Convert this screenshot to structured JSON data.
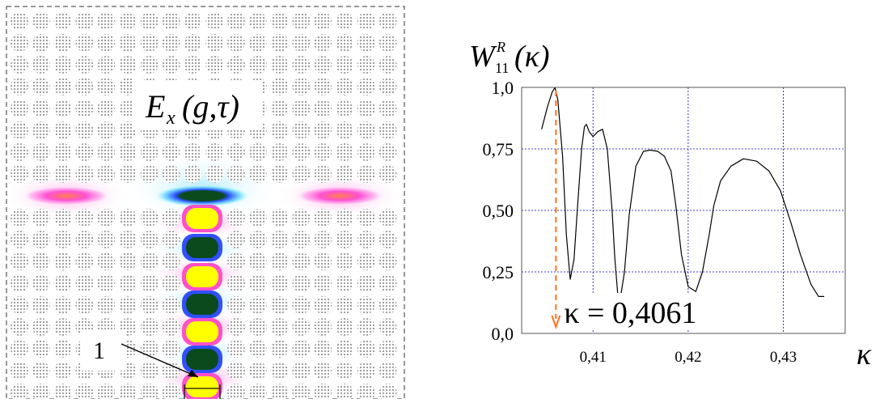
{
  "field_panel": {
    "label_E": "E",
    "label_x": "x",
    "label_args": "(g,τ)",
    "marker_label": "1",
    "colors": {
      "rod": "#9a9a9a",
      "yellow": "#ffff00",
      "dark_green": "#0b4a1d",
      "magenta": "#ff40c0",
      "blue": "#3050ff",
      "cyan": "#50d0ff",
      "orange": "#ff8050"
    }
  },
  "chart_data": {
    "type": "line",
    "title": "W₁₁ᴿ(κ)",
    "title_parts": {
      "base": "W",
      "sub": "11",
      "sup": "R",
      "arg": "(κ)"
    },
    "xlabel": "κ",
    "ylabel": "",
    "xlim": [
      0.4025,
      0.4365
    ],
    "ylim": [
      0,
      1.0
    ],
    "xticks": [
      0.41,
      0.42,
      0.43
    ],
    "xtick_labels": [
      "0,41",
      "0,42",
      "0,43"
    ],
    "yticks": [
      0.0,
      0.25,
      0.5,
      0.75,
      1.0
    ],
    "ytick_labels": [
      "0,0",
      "0,25",
      "0,50",
      "0,75",
      "1,0"
    ],
    "grid": true,
    "series": [
      {
        "x": [
          0.4046,
          0.4052,
          0.4057,
          0.406,
          0.4063,
          0.4068,
          0.4072,
          0.4076,
          0.408,
          0.4084,
          0.4088,
          0.4091,
          0.4093,
          0.4096,
          0.41,
          0.4105,
          0.411,
          0.4115,
          0.412,
          0.4123,
          0.4126,
          0.4129,
          0.4133,
          0.4138,
          0.4145,
          0.4153,
          0.416,
          0.4168,
          0.4175,
          0.4182,
          0.4187,
          0.4193,
          0.42,
          0.4208,
          0.4215,
          0.4222,
          0.4227,
          0.4234,
          0.4245,
          0.4258,
          0.4272,
          0.4285,
          0.4297,
          0.4308,
          0.4318,
          0.4329,
          0.4337,
          0.4343
        ],
        "y": [
          0.83,
          0.92,
          0.98,
          1.0,
          0.95,
          0.72,
          0.4,
          0.22,
          0.3,
          0.53,
          0.75,
          0.84,
          0.85,
          0.82,
          0.8,
          0.82,
          0.83,
          0.75,
          0.5,
          0.3,
          0.16,
          0.15,
          0.25,
          0.48,
          0.68,
          0.74,
          0.745,
          0.74,
          0.72,
          0.66,
          0.52,
          0.32,
          0.19,
          0.17,
          0.25,
          0.4,
          0.52,
          0.62,
          0.68,
          0.71,
          0.7,
          0.66,
          0.58,
          0.45,
          0.32,
          0.2,
          0.15,
          0.15
        ]
      }
    ],
    "annotation": {
      "text": "κ = 0,4061",
      "x": 0.4061,
      "arrow_color": "#ff7020"
    }
  }
}
